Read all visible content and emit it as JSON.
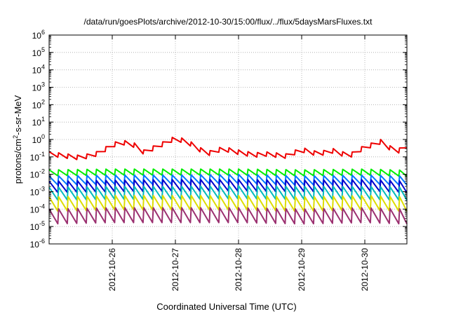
{
  "chart_data": {
    "type": "line",
    "title": "/data/run/goesPlots/archive/2012-10-30/15:00/flux/../flux/5daysMarsFluxes.txt",
    "xlabel": "Coordinated Universal Time (UTC)",
    "ylabel": {
      "prefix": "protons/cm",
      "sup": "2",
      "suffix": "-s-sr-MeV"
    },
    "x_range": [
      "2012-10-25T00:00",
      "2012-10-30T16:00"
    ],
    "x_ticks": [
      "2012-10-26",
      "2012-10-27",
      "2012-10-28",
      "2012-10-29",
      "2012-10-30"
    ],
    "y_scale": "log",
    "ylim": [
      1e-06,
      1000000.0
    ],
    "y_ticks": [
      {
        "base": "10",
        "exp": "-6"
      },
      {
        "base": "10",
        "exp": "-5"
      },
      {
        "base": "10",
        "exp": "-4"
      },
      {
        "base": "10",
        "exp": "-3"
      },
      {
        "base": "10",
        "exp": "-2"
      },
      {
        "base": "10",
        "exp": "-1"
      },
      {
        "base": "10",
        "exp": "0"
      },
      {
        "base": "10",
        "exp": "1"
      },
      {
        "base": "10",
        "exp": "2"
      },
      {
        "base": "10",
        "exp": "3"
      },
      {
        "base": "10",
        "exp": "4"
      },
      {
        "base": "10",
        "exp": "5"
      },
      {
        "base": "10",
        "exp": "6"
      }
    ],
    "grid": true,
    "sawtooth_period_hours": 3.6,
    "series": [
      {
        "color": "#ee0000",
        "x": [
          "2012-10-25T00:00",
          "2012-10-25T12:00",
          "2012-10-25T18:00",
          "2012-10-25T23:00",
          "2012-10-26T03:00",
          "2012-10-26T09:00",
          "2012-10-26T12:00",
          "2012-10-26T18:00",
          "2012-10-27T00:00",
          "2012-10-27T05:00",
          "2012-10-27T12:00",
          "2012-10-27T18:00",
          "2012-10-28T00:00",
          "2012-10-28T06:00",
          "2012-10-28T10:00",
          "2012-10-28T18:00",
          "2012-10-29T00:00",
          "2012-10-29T06:00",
          "2012-10-29T12:00",
          "2012-10-29T18:00",
          "2012-10-29T23:00",
          "2012-10-30T06:00",
          "2012-10-30T12:00",
          "2012-10-30T16:00"
        ],
        "y": [
          0.2,
          0.12,
          0.2,
          0.5,
          1.0,
          0.6,
          0.25,
          0.6,
          1.6,
          0.9,
          0.2,
          0.4,
          0.25,
          0.17,
          0.2,
          0.15,
          0.35,
          0.2,
          0.3,
          0.15,
          0.4,
          1.0,
          0.25,
          0.6
        ],
        "lo_ratio": 0.55
      },
      {
        "color": "#00ee00",
        "x": [
          "2012-10-25T00:00",
          "2012-10-26T00:00",
          "2012-10-27T00:00",
          "2012-10-28T00:00",
          "2012-10-29T00:00",
          "2012-10-30T00:00",
          "2012-10-30T16:00"
        ],
        "y": [
          0.018,
          0.02,
          0.02,
          0.02,
          0.018,
          0.02,
          0.017
        ],
        "lo_ratio": 0.45
      },
      {
        "color": "#0077ff",
        "x": [
          "2012-10-25T00:00",
          "2012-10-26T00:00",
          "2012-10-27T00:00",
          "2012-10-28T00:00",
          "2012-10-29T00:00",
          "2012-10-30T00:00",
          "2012-10-30T16:00"
        ],
        "y": [
          0.008,
          0.009,
          0.009,
          0.01,
          0.008,
          0.009,
          0.008
        ],
        "lo_ratio": 0.3
      },
      {
        "color": "#0000cc",
        "x": [
          "2012-10-25T00:00",
          "2012-10-26T00:00",
          "2012-10-27T00:00",
          "2012-10-28T00:00",
          "2012-10-29T00:00",
          "2012-10-30T00:00",
          "2012-10-30T16:00"
        ],
        "y": [
          0.004,
          0.0045,
          0.005,
          0.005,
          0.0045,
          0.005,
          0.004
        ],
        "lo_ratio": 0.22
      },
      {
        "color": "#00bbbb",
        "x": [
          "2012-10-25T00:00",
          "2012-10-26T00:00",
          "2012-10-27T00:00",
          "2012-10-28T00:00",
          "2012-10-29T00:00",
          "2012-10-30T00:00",
          "2012-10-30T16:00"
        ],
        "y": [
          0.0018,
          0.002,
          0.002,
          0.0022,
          0.002,
          0.002,
          0.0018
        ],
        "lo_ratio": 0.18
      },
      {
        "color": "#dddd00",
        "x": [
          "2012-10-25T00:00",
          "2012-10-26T00:00",
          "2012-10-27T00:00",
          "2012-10-28T00:00",
          "2012-10-29T00:00",
          "2012-10-30T00:00",
          "2012-10-30T16:00"
        ],
        "y": [
          0.0005,
          0.0006,
          0.0006,
          0.0006,
          0.0005,
          0.0006,
          0.0005
        ],
        "lo_ratio": 0.15
      },
      {
        "color": "#9b3070",
        "x": [
          "2012-10-25T00:00",
          "2012-10-26T00:00",
          "2012-10-27T00:00",
          "2012-10-28T00:00",
          "2012-10-29T00:00",
          "2012-10-30T00:00",
          "2012-10-30T16:00"
        ],
        "y": [
          0.0001,
          0.00012,
          0.00012,
          0.00012,
          0.0001,
          0.00012,
          0.0001
        ],
        "lo_ratio": 0.14
      }
    ]
  }
}
